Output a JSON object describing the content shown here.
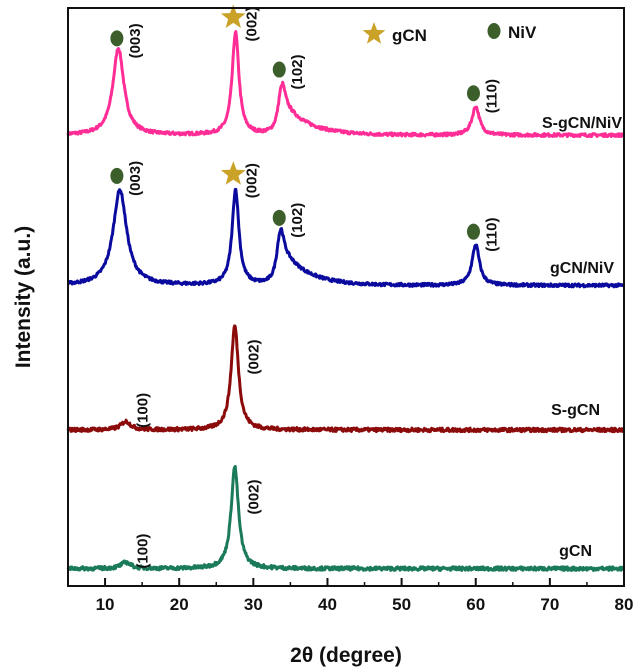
{
  "chart_data": {
    "type": "line",
    "xlabel": "2θ (degree)",
    "ylabel": "Intensity (a.u.)",
    "xlim": [
      5,
      80
    ],
    "xticks": [
      10,
      20,
      30,
      40,
      50,
      60,
      70,
      80
    ],
    "y_ticks_shown": false,
    "grid": false,
    "legend": {
      "placement": "top-right",
      "items": [
        {
          "label": "gCN",
          "marker": "star",
          "color": "#c9a227"
        },
        {
          "label": "NiV",
          "marker": "circle",
          "color": "#3b5e2b"
        }
      ]
    },
    "series": [
      {
        "name": "S-gCN/NiV",
        "color": "#ff2d95",
        "baseline": 0.78,
        "scale": 0.15,
        "peaks": [
          {
            "x": 11.8,
            "height": 1.0,
            "width": 0.9,
            "tail": 0.0
          },
          {
            "x": 27.6,
            "height": 1.18,
            "width": 0.55,
            "tail": 0.0
          },
          {
            "x": 33.8,
            "height": 0.55,
            "width": 0.55,
            "tail": 0.35
          },
          {
            "x": 60.0,
            "height": 0.33,
            "width": 0.6,
            "tail": 0.0
          }
        ]
      },
      {
        "name": "gCN/NiV",
        "color": "#0a0a9e",
        "baseline": 0.52,
        "scale": 0.15,
        "peaks": [
          {
            "x": 12.0,
            "height": 1.1,
            "width": 1.1,
            "tail": 0.0
          },
          {
            "x": 27.6,
            "height": 1.1,
            "width": 0.55,
            "tail": 0.0
          },
          {
            "x": 33.6,
            "height": 0.6,
            "width": 0.55,
            "tail": 0.4
          },
          {
            "x": 60.0,
            "height": 0.47,
            "width": 0.6,
            "tail": 0.0
          }
        ]
      },
      {
        "name": "S-gCN",
        "color": "#8b0a0a",
        "baseline": 0.27,
        "scale": 0.18,
        "peaks": [
          {
            "x": 12.8,
            "height": 0.08,
            "width": 0.8,
            "tail": 0.0
          },
          {
            "x": 27.5,
            "height": 1.0,
            "width": 0.6,
            "tail": 0.0
          }
        ]
      },
      {
        "name": "gCN",
        "color": "#1a7a5a",
        "baseline": 0.03,
        "scale": 0.18,
        "peaks": [
          {
            "x": 12.8,
            "height": 0.06,
            "width": 0.8,
            "tail": 0.0
          },
          {
            "x": 27.5,
            "height": 0.98,
            "width": 0.6,
            "tail": 0.0
          }
        ]
      }
    ],
    "annotations": [
      {
        "text": "(003)",
        "series": "S-gCN/NiV",
        "x": 12.0,
        "marker": "circle"
      },
      {
        "text": "(002)",
        "series": "S-gCN/NiV",
        "x": 27.7,
        "marker": "star"
      },
      {
        "text": "(102)",
        "series": "S-gCN/NiV",
        "x": 33.9,
        "marker": "circle"
      },
      {
        "text": "(110)",
        "series": "S-gCN/NiV",
        "x": 60.1,
        "marker": "circle"
      },
      {
        "text": "(003)",
        "series": "gCN/NiV",
        "x": 12.0,
        "marker": "circle"
      },
      {
        "text": "(002)",
        "series": "gCN/NiV",
        "x": 27.7,
        "marker": "star"
      },
      {
        "text": "(102)",
        "series": "gCN/NiV",
        "x": 33.9,
        "marker": "circle"
      },
      {
        "text": "(110)",
        "series": "gCN/NiV",
        "x": 60.1,
        "marker": "circle"
      },
      {
        "text": "(100)",
        "series": "S-gCN",
        "x": 13.0,
        "marker": "none"
      },
      {
        "text": "(002)",
        "series": "S-gCN",
        "x": 28.0,
        "marker": "none"
      },
      {
        "text": "(100)",
        "series": "gCN",
        "x": 13.0,
        "marker": "none"
      },
      {
        "text": "(002)",
        "series": "gCN",
        "x": 28.0,
        "marker": "none"
      }
    ]
  }
}
